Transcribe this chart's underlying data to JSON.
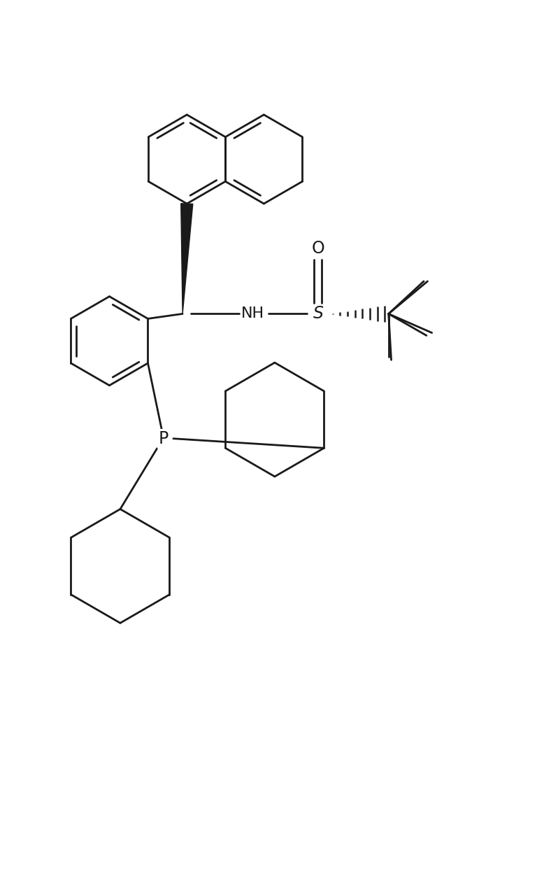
{
  "bg_color": "#ffffff",
  "line_color": "#1a1a1a",
  "lw": 2.0,
  "fig_w": 7.78,
  "fig_h": 12.69,
  "xlim": [
    0,
    10
  ],
  "ylim": [
    0,
    16.3
  ]
}
